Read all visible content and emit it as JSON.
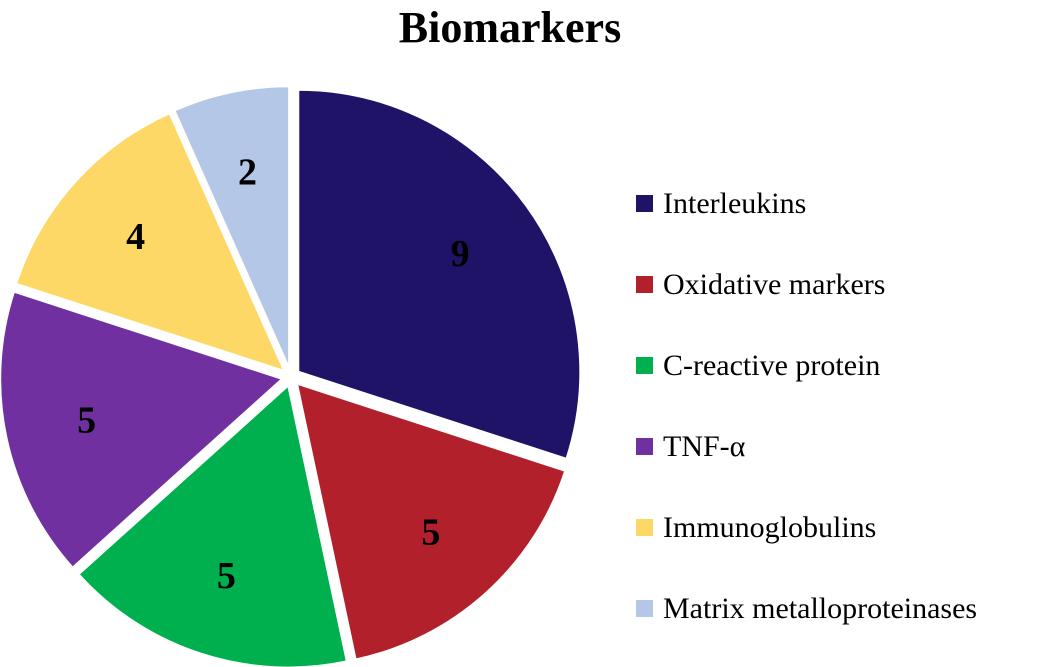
{
  "chart_data": {
    "type": "pie",
    "title": "Biomarkers",
    "categories": [
      "Interleukins",
      "Oxidative markers",
      "C-reactive protein",
      "TNF-α",
      "Immunoglobulins",
      "Matrix metalloproteinases"
    ],
    "values": [
      9,
      5,
      5,
      5,
      4,
      2
    ],
    "colors": [
      "#1f1368",
      "#b2202b",
      "#00b04f",
      "#7030a0",
      "#fdd866",
      "#b4c7e7"
    ],
    "data_labels": [
      "9",
      "5",
      "5",
      "5",
      "4",
      "2"
    ],
    "legend_position": "right",
    "start_angle": "12 o'clock",
    "direction": "clockwise",
    "exploded": true
  }
}
